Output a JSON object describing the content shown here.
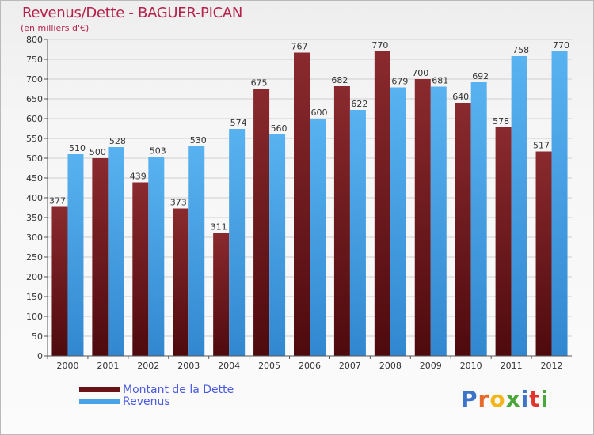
{
  "title": "Revenus/Dette - BAGUER-PICAN",
  "subtitle": "(en milliers d'€)",
  "colors": {
    "dette": "#7a1a1f",
    "revenus": "#4aa3e6",
    "title": "#b5214b",
    "legend_text": "#4a5ae0"
  },
  "legend": [
    {
      "label": "Montant de la Dette",
      "color": "#6b1216"
    },
    {
      "label": "Revenus",
      "color": "#4aa3e6"
    }
  ],
  "logo": {
    "text": "Proxiti",
    "letters": [
      "P",
      "r",
      "o",
      "x",
      "i",
      "t",
      "i"
    ],
    "letter_colors": [
      "#3b74c9",
      "#e66a2a",
      "#f3b51b",
      "#4aa83a",
      "#3b74c9",
      "#e2342f",
      "#4aa83a"
    ]
  },
  "chart_data": {
    "type": "bar",
    "categories": [
      "2000",
      "2001",
      "2002",
      "2003",
      "2004",
      "2005",
      "2006",
      "2007",
      "2008",
      "2009",
      "2010",
      "2011",
      "2012"
    ],
    "series": [
      {
        "name": "Montant de la Dette",
        "values": [
          377,
          500,
          439,
          373,
          311,
          675,
          767,
          682,
          770,
          700,
          640,
          578,
          517
        ]
      },
      {
        "name": "Revenus",
        "values": [
          510,
          528,
          503,
          530,
          574,
          560,
          600,
          622,
          679,
          681,
          692,
          758,
          770
        ]
      }
    ],
    "ylim": [
      0,
      800
    ],
    "yticks": [
      0,
      50,
      100,
      150,
      200,
      250,
      300,
      350,
      400,
      450,
      500,
      550,
      600,
      650,
      700,
      750,
      800
    ],
    "grid": true,
    "xlabel": "",
    "ylabel": ""
  }
}
